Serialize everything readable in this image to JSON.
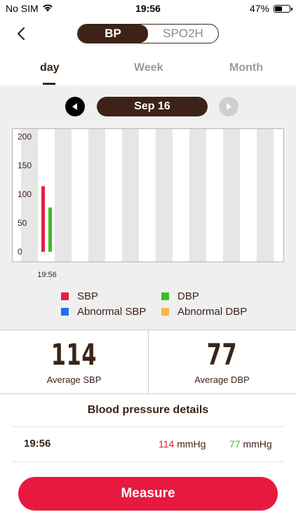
{
  "status_bar": {
    "carrier": "No SIM",
    "time": "19:56",
    "battery": "47%"
  },
  "header": {
    "segments": [
      {
        "label": "BP",
        "active": true
      },
      {
        "label": "SPO2H",
        "active": false
      }
    ]
  },
  "tabs": [
    {
      "label": "day",
      "active": true
    },
    {
      "label": "Week",
      "active": false
    },
    {
      "label": "Month",
      "active": false
    }
  ],
  "date_nav": {
    "date": "Sep 16"
  },
  "chart_data": {
    "type": "bar",
    "ylim": [
      0,
      200
    ],
    "y_ticks": [
      0,
      50,
      100,
      150,
      200
    ],
    "x_tick_label": "19:56",
    "series": [
      {
        "name": "SBP",
        "values": [
          114
        ],
        "color": "#e0213f"
      },
      {
        "name": "DBP",
        "values": [
          77
        ],
        "color": "#39c020"
      }
    ],
    "grid": "alternating columns",
    "legend": [
      {
        "label": "SBP",
        "color": "#e0213f"
      },
      {
        "label": "DBP",
        "color": "#39c020"
      },
      {
        "label": "Abnormal SBP",
        "color": "#1f6ff0"
      },
      {
        "label": "Abnormal DBP",
        "color": "#f3b94a"
      }
    ]
  },
  "summary": {
    "avg_sbp_value": "114",
    "avg_sbp_label": "Average SBP",
    "avg_dbp_value": "77",
    "avg_dbp_label": "Average DBP"
  },
  "details": {
    "title": "Blood pressure details",
    "rows": [
      {
        "time": "19:56",
        "sbp": "114",
        "dbp": "77",
        "unit": "mmHg"
      }
    ]
  },
  "actions": {
    "measure_label": "Measure"
  },
  "colors": {
    "brand_brown": "#3d2217",
    "measure_red": "#e8193f"
  }
}
